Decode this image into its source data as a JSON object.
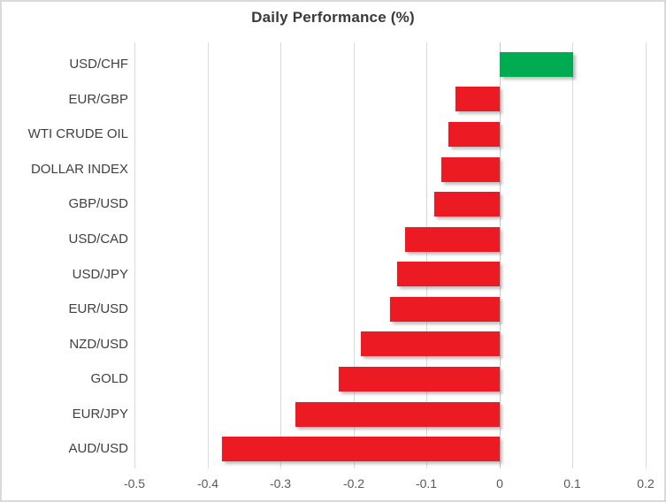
{
  "chart_data": {
    "type": "bar",
    "orientation": "horizontal",
    "title": "Daily Performance (%)",
    "categories": [
      "USD/CHF",
      "EUR/GBP",
      "WTI CRUDE OIL",
      "DOLLAR INDEX",
      "GBP/USD",
      "USD/CAD",
      "USD/JPY",
      "EUR/USD",
      "NZD/USD",
      "GOLD",
      "EUR/JPY",
      "AUD/USD"
    ],
    "values": [
      0.1,
      -0.06,
      -0.07,
      -0.08,
      -0.09,
      -0.13,
      -0.14,
      -0.15,
      -0.19,
      -0.22,
      -0.28,
      -0.38
    ],
    "xlabel": "",
    "ylabel": "",
    "xlim": [
      -0.5,
      0.2
    ],
    "x_ticks": [
      -0.5,
      -0.4,
      -0.3,
      -0.2,
      -0.1,
      0,
      0.1,
      0.2
    ],
    "x_tick_labels": [
      "-0.5",
      "-0.4",
      "-0.3",
      "-0.2",
      "-0.1",
      "0",
      "0.1",
      "0.2"
    ],
    "grid": true,
    "legend": false,
    "positive_color": "#00ab52",
    "negative_color": "#ec1b23",
    "gridline_color": "#d9d9d9",
    "zero_line_color": "#c6c6c6",
    "title_color": "#3a3a3a",
    "category_label_color": "#404040",
    "tick_label_color": "#595959"
  }
}
